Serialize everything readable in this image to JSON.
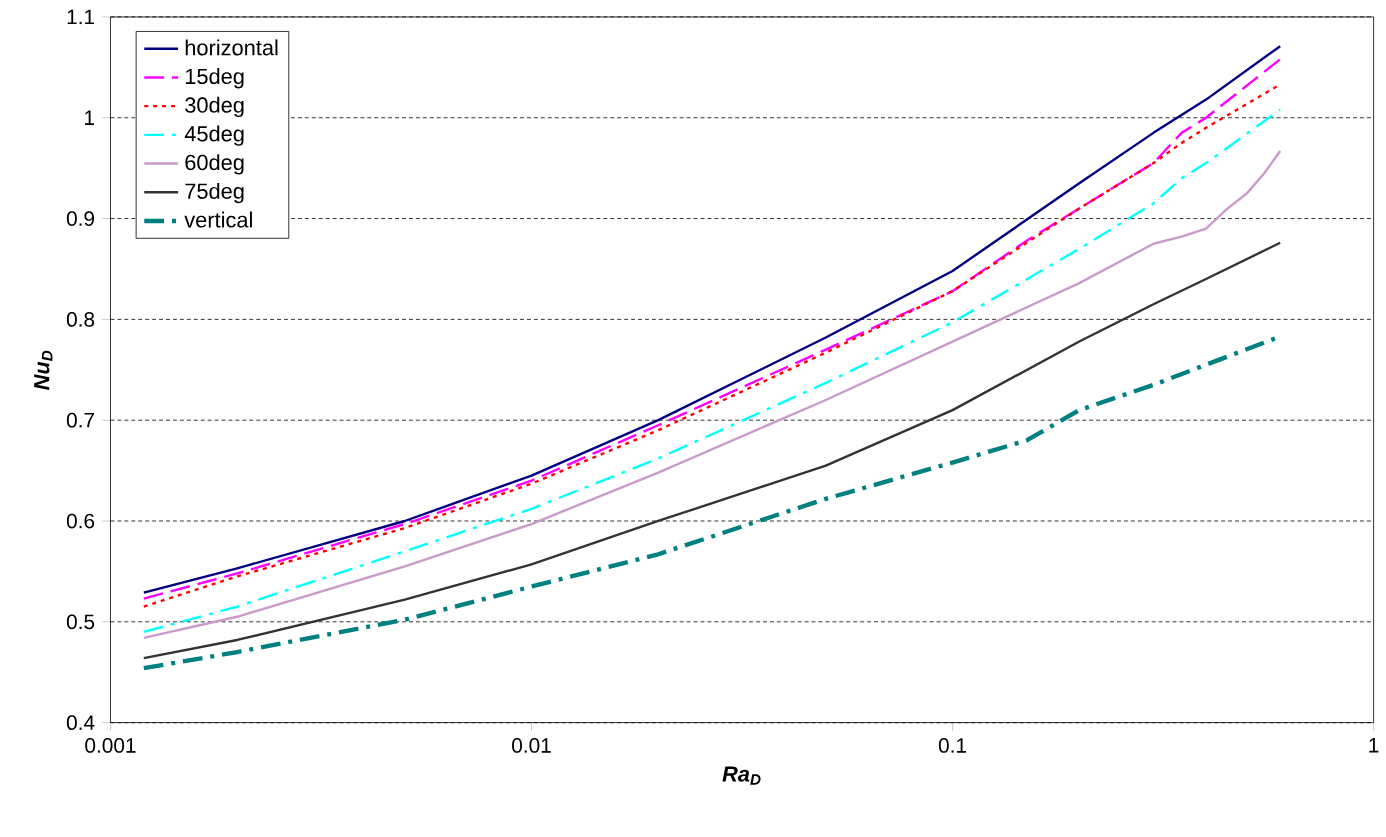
{
  "chart_data": {
    "type": "line",
    "xlabel": "Ra$_{D}$",
    "ylabel": "Nu$_{D}$",
    "log": "x",
    "grid": "y",
    "legend": "top left",
    "xlim": [
      0.001,
      1
    ],
    "xticks": [
      0.001,
      0.01,
      0.1,
      1
    ],
    "ylim": [
      0.4,
      1.1
    ],
    "yticks": [
      0.4,
      0.5,
      0.6,
      0.7,
      0.8,
      0.9,
      1,
      1.1
    ],
    "x": [
      0.0012,
      0.002,
      0.005,
      0.01,
      0.02,
      0.05,
      0.1,
      0.2,
      0.3,
      0.4,
      0.6
    ],
    "series": [
      {
        "name": "horizontal",
        "color": "#000080",
        "line_style": "solid",
        "values": [
          0.529,
          0.553,
          0.6,
          0.645,
          0.7,
          0.782,
          0.848,
          0.935,
          0.985,
          1.018,
          1.071
        ]
      },
      {
        "name": "15deg",
        "color": "#ff00ff",
        "line_style": "dashed",
        "x": [
          0.0012,
          0.002,
          0.005,
          0.01,
          0.02,
          0.05,
          0.1,
          0.15,
          0.2,
          0.3,
          0.35,
          0.4,
          0.6
        ],
        "values": [
          0.523,
          0.548,
          0.597,
          0.64,
          0.695,
          0.77,
          0.828,
          0.878,
          0.91,
          0.955,
          0.985,
          1.0,
          1.058
        ]
      },
      {
        "name": "30deg",
        "color": "#ff0000",
        "line_style": "dotted",
        "x": [
          0.0012,
          0.002,
          0.005,
          0.01,
          0.02,
          0.05,
          0.1,
          0.2,
          0.3,
          0.35,
          0.4,
          0.6
        ],
        "values": [
          0.515,
          0.545,
          0.593,
          0.637,
          0.69,
          0.767,
          0.828,
          0.91,
          0.955,
          0.975,
          0.99,
          1.033
        ]
      },
      {
        "name": "45deg",
        "color": "#00ffff",
        "line_style": "dashdot",
        "x": [
          0.0012,
          0.002,
          0.005,
          0.01,
          0.02,
          0.05,
          0.1,
          0.2,
          0.3,
          0.35,
          0.4,
          0.6
        ],
        "values": [
          0.49,
          0.515,
          0.57,
          0.612,
          0.662,
          0.737,
          0.797,
          0.87,
          0.915,
          0.94,
          0.955,
          1.008
        ]
      },
      {
        "name": "60deg",
        "color": "#cc99cc",
        "line_style": "solid",
        "x": [
          0.0012,
          0.002,
          0.005,
          0.01,
          0.02,
          0.05,
          0.1,
          0.2,
          0.3,
          0.35,
          0.4,
          0.45,
          0.5,
          0.55,
          0.6
        ],
        "values": [
          0.484,
          0.505,
          0.555,
          0.597,
          0.648,
          0.72,
          0.778,
          0.836,
          0.875,
          0.882,
          0.89,
          0.91,
          0.925,
          0.945,
          0.967
        ]
      },
      {
        "name": "75deg",
        "color": "#333333",
        "line_style": "solid",
        "values": [
          0.464,
          0.482,
          0.522,
          0.557,
          0.6,
          0.655,
          0.71,
          0.778,
          0.815,
          0.84,
          0.876
        ]
      },
      {
        "name": "vertical",
        "color": "#008080",
        "line_style": "dashdot",
        "x": [
          0.0012,
          0.002,
          0.005,
          0.01,
          0.02,
          0.05,
          0.1,
          0.15,
          0.2,
          0.3,
          0.4,
          0.6
        ],
        "values": [
          0.454,
          0.47,
          0.502,
          0.535,
          0.567,
          0.622,
          0.658,
          0.68,
          0.71,
          0.735,
          0.755,
          0.783
        ]
      }
    ]
  }
}
